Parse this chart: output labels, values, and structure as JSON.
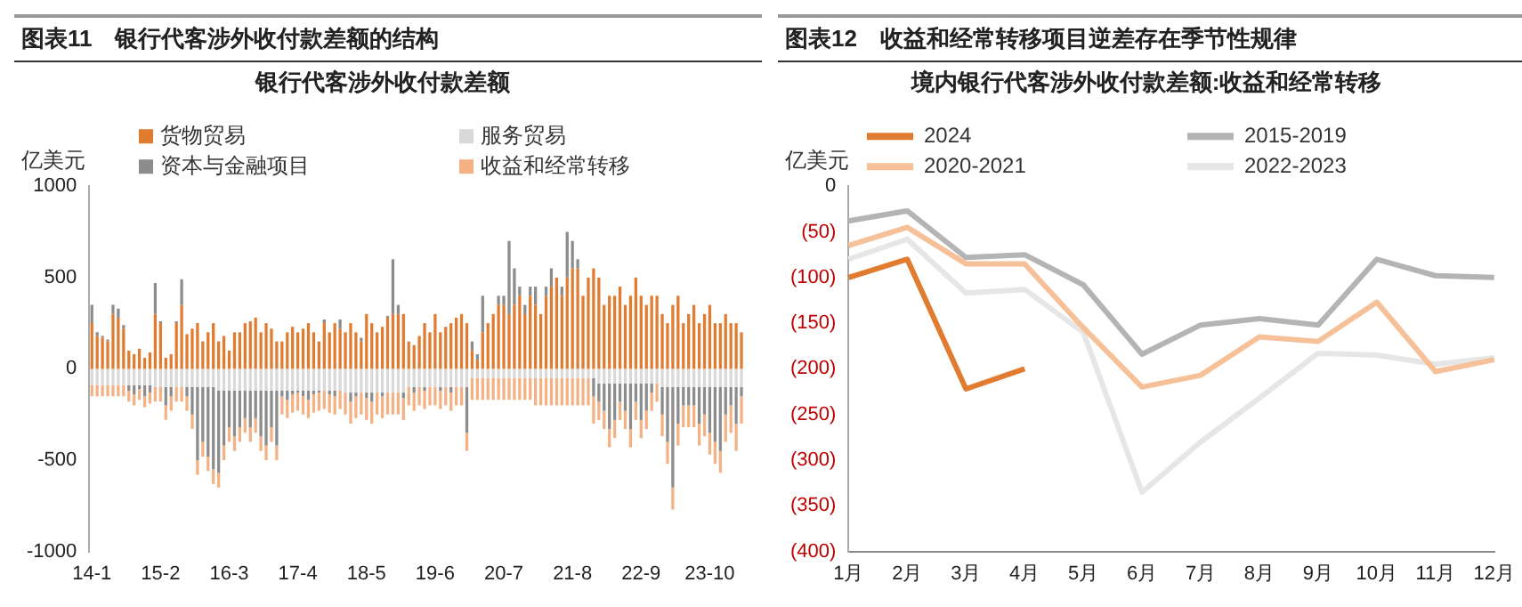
{
  "chart_data": [
    {
      "type": "bar",
      "title": "图表11　银行代客涉外收付款差额的结构",
      "subtitle": "银行代客涉外收付款差额",
      "ylabel": "亿美元",
      "stacked": true,
      "legend": "top",
      "categories": [
        "14-1",
        null,
        null,
        null,
        null,
        null,
        null,
        null,
        null,
        null,
        null,
        null,
        null,
        "15-2",
        null,
        null,
        null,
        null,
        null,
        null,
        null,
        null,
        null,
        null,
        null,
        null,
        "16-3",
        null,
        null,
        null,
        null,
        null,
        null,
        null,
        null,
        null,
        null,
        null,
        null,
        "17-4",
        null,
        null,
        null,
        null,
        null,
        null,
        null,
        null,
        null,
        null,
        null,
        null,
        "18-5",
        null,
        null,
        null,
        null,
        null,
        null,
        null,
        null,
        null,
        null,
        null,
        null,
        "19-6",
        null,
        null,
        null,
        null,
        null,
        null,
        null,
        null,
        null,
        null,
        null,
        null,
        "20-7",
        null,
        null,
        null,
        null,
        null,
        null,
        null,
        null,
        null,
        null,
        null,
        null,
        "21-8",
        null,
        null,
        null,
        null,
        null,
        null,
        null,
        null,
        null,
        null,
        null,
        null,
        "22-9",
        null,
        null,
        null,
        null,
        null,
        null,
        null,
        null,
        null,
        null,
        null,
        null,
        "23-10",
        null,
        null,
        null,
        null,
        null,
        null
      ],
      "ylim": [
        -1000,
        1000
      ],
      "yticks": [
        -1000,
        -500,
        0,
        500,
        1000
      ],
      "series": [
        {
          "name": "货物贸易",
          "color": "#e07b30",
          "values": [
            250,
            180,
            170,
            150,
            300,
            280,
            220,
            100,
            80,
            110,
            60,
            90,
            300,
            250,
            60,
            80,
            250,
            350,
            190,
            220,
            250,
            150,
            200,
            250,
            150,
            180,
            100,
            200,
            200,
            250,
            260,
            280,
            200,
            250,
            220,
            150,
            150,
            200,
            230,
            200,
            220,
            250,
            200,
            150,
            250,
            200,
            250,
            220,
            200,
            250,
            200,
            150,
            300,
            250,
            200,
            230,
            280,
            300,
            300,
            300,
            150,
            130,
            180,
            250,
            200,
            300,
            200,
            230,
            250,
            280,
            300,
            250,
            100,
            50,
            200,
            250,
            300,
            350,
            350,
            300,
            350,
            400,
            300,
            400,
            350,
            300,
            400,
            450,
            500,
            400,
            500,
            550,
            550,
            400,
            500,
            550,
            500,
            350,
            400,
            400,
            450,
            350,
            400,
            500,
            400,
            350,
            400,
            400,
            300,
            250,
            350,
            400,
            250,
            300,
            350,
            250,
            300,
            350,
            250,
            250,
            300,
            250,
            250,
            200
          ]
        },
        {
          "name": "服务贸易",
          "color": "#d9d9d9",
          "values": [
            -90,
            -90,
            -90,
            -90,
            -90,
            -90,
            -90,
            -90,
            -90,
            -90,
            -90,
            -90,
            -100,
            -100,
            -100,
            -100,
            -100,
            -100,
            -100,
            -100,
            -100,
            -100,
            -100,
            -100,
            -120,
            -120,
            -120,
            -120,
            -120,
            -120,
            -120,
            -120,
            -120,
            -120,
            -120,
            -120,
            -120,
            -120,
            -120,
            -120,
            -120,
            -120,
            -120,
            -120,
            -120,
            -120,
            -120,
            -120,
            -130,
            -130,
            -130,
            -130,
            -130,
            -130,
            -130,
            -130,
            -130,
            -130,
            -130,
            -130,
            -100,
            -100,
            -100,
            -100,
            -100,
            -100,
            -100,
            -100,
            -100,
            -100,
            -100,
            -100,
            -50,
            -50,
            -50,
            -50,
            -50,
            -50,
            -50,
            -50,
            -50,
            -50,
            -50,
            -50,
            -50,
            -50,
            -50,
            -50,
            -50,
            -50,
            -50,
            -50,
            -50,
            -50,
            -50,
            -50,
            -80,
            -80,
            -80,
            -80,
            -80,
            -80,
            -80,
            -80,
            -80,
            -80,
            -80,
            -80,
            -100,
            -100,
            -100,
            -100,
            -100,
            -100,
            -100,
            -100,
            -100,
            -100,
            -100,
            -100,
            -100,
            -100,
            -100,
            -100
          ]
        },
        {
          "name": "资本与金融项目",
          "color": "#8c8c8c",
          "values": [
            100,
            20,
            10,
            10,
            50,
            50,
            20,
            -30,
            -50,
            -20,
            -60,
            -40,
            170,
            10,
            -100,
            -50,
            10,
            140,
            -50,
            -150,
            -400,
            -300,
            -380,
            -450,
            -450,
            -300,
            -200,
            -250,
            -200,
            -150,
            -200,
            -150,
            -250,
            -300,
            -200,
            -300,
            -30,
            -50,
            -20,
            -10,
            -30,
            -50,
            -20,
            -10,
            20,
            -20,
            -30,
            50,
            0,
            -50,
            -20,
            20,
            -30,
            -50,
            0,
            -20,
            10,
            300,
            50,
            -30,
            0,
            -30,
            0,
            -20,
            0,
            0,
            -20,
            0,
            -30,
            0,
            0,
            -250,
            50,
            30,
            200,
            0,
            0,
            50,
            50,
            400,
            200,
            50,
            50,
            50,
            100,
            0,
            50,
            100,
            0,
            50,
            250,
            150,
            50,
            0,
            0,
            -100,
            -100,
            -150,
            -250,
            -200,
            -100,
            -150,
            -250,
            -100,
            -200,
            -150,
            -50,
            0,
            -150,
            -300,
            -550,
            -200,
            -100,
            -100,
            -100,
            -200,
            -150,
            -250,
            -300,
            -350,
            -150,
            -100,
            -200,
            -50
          ]
        },
        {
          "name": "收益和经常转移",
          "color": "#f4b183",
          "values": [
            -60,
            -60,
            -60,
            -60,
            -60,
            -60,
            -60,
            -60,
            -60,
            -60,
            -60,
            -60,
            -80,
            -80,
            -80,
            -80,
            -80,
            -80,
            -80,
            -80,
            -80,
            -80,
            -80,
            -80,
            -80,
            -80,
            -80,
            -80,
            -80,
            -80,
            -80,
            -80,
            -80,
            -80,
            -80,
            -80,
            -100,
            -100,
            -100,
            -100,
            -100,
            -100,
            -100,
            -100,
            -100,
            -100,
            -100,
            -100,
            -120,
            -120,
            -120,
            -120,
            -120,
            -120,
            -120,
            -120,
            -120,
            -120,
            -120,
            -120,
            -100,
            -100,
            -100,
            -100,
            -100,
            -100,
            -100,
            -100,
            -100,
            -100,
            -100,
            -100,
            -120,
            -120,
            -120,
            -120,
            -120,
            -120,
            -120,
            -120,
            -120,
            -120,
            -120,
            -120,
            -150,
            -150,
            -150,
            -150,
            -150,
            -150,
            -150,
            -150,
            -150,
            -150,
            -150,
            -150,
            -100,
            -100,
            -100,
            -100,
            -100,
            -100,
            -100,
            -100,
            -100,
            -100,
            -100,
            -100,
            -120,
            -120,
            -120,
            -120,
            -120,
            -120,
            -120,
            -120,
            -120,
            -120,
            -120,
            -120,
            -150,
            -150,
            -150,
            -150
          ]
        }
      ]
    },
    {
      "type": "line",
      "title": "图表12　收益和经常转移项目逆差存在季节性规律",
      "subtitle": "境内银行代客涉外收付款差额:收益和经常转移",
      "ylabel": "亿美元",
      "legend": "top",
      "marker": "none",
      "line_style": "solid",
      "categories": [
        "1月",
        "2月",
        "3月",
        "4月",
        "5月",
        "6月",
        "7月",
        "8月",
        "9月",
        "10月",
        "11月",
        "12月"
      ],
      "ylim": [
        -400,
        0
      ],
      "yticks": [
        {
          "value": -400,
          "label": "(400)"
        },
        {
          "value": -350,
          "label": "(350)"
        },
        {
          "value": -300,
          "label": "(300)"
        },
        {
          "value": -250,
          "label": "(250)"
        },
        {
          "value": -200,
          "label": "(200)"
        },
        {
          "value": -150,
          "label": "(150)"
        },
        {
          "value": -100,
          "label": "(100)"
        },
        {
          "value": -50,
          "label": "(50)"
        },
        0
      ],
      "series": [
        {
          "name": "2024",
          "color": "#e07b30",
          "values": [
            -100,
            -80,
            -222,
            -200,
            null,
            null,
            null,
            null,
            null,
            null,
            null,
            null
          ]
        },
        {
          "name": "2015-2019",
          "color": "#b4b4b4",
          "values": [
            -38,
            -27,
            -78,
            -75,
            -108,
            -184,
            -152,
            -145,
            -152,
            -80,
            -98,
            -100
          ]
        },
        {
          "name": "2020-2021",
          "color": "#f6c198",
          "values": [
            -65,
            -45,
            -85,
            -85,
            -155,
            -220,
            -207,
            -165,
            -170,
            -127,
            -203,
            -190
          ]
        },
        {
          "name": "2022-2023",
          "color": "#e6e6e6",
          "values": [
            -80,
            -58,
            -117,
            -113,
            -160,
            -335,
            -280,
            -232,
            -183,
            -185,
            -195,
            -188
          ]
        }
      ]
    }
  ]
}
